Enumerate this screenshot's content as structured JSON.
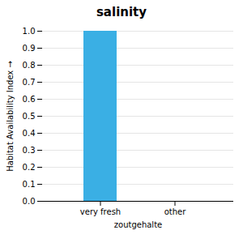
{
  "chart_data": {
    "type": "bar",
    "title": "salinity",
    "xlabel": "zoutgehalte",
    "ylabel": "Habitat Availability Index",
    "categories": [
      "very fresh",
      "other"
    ],
    "values": [
      1.0,
      0.0
    ],
    "color": "#3aafe4",
    "ylim": [
      0.0,
      1.0
    ],
    "yticks": [
      {
        "value": 0.0,
        "label": "0.0"
      },
      0.1,
      0.2,
      0.3,
      0.4,
      0.5,
      0.6,
      0.7,
      0.8,
      0.9,
      {
        "value": 1.0,
        "label": "1.0"
      }
    ],
    "grid": true
  }
}
